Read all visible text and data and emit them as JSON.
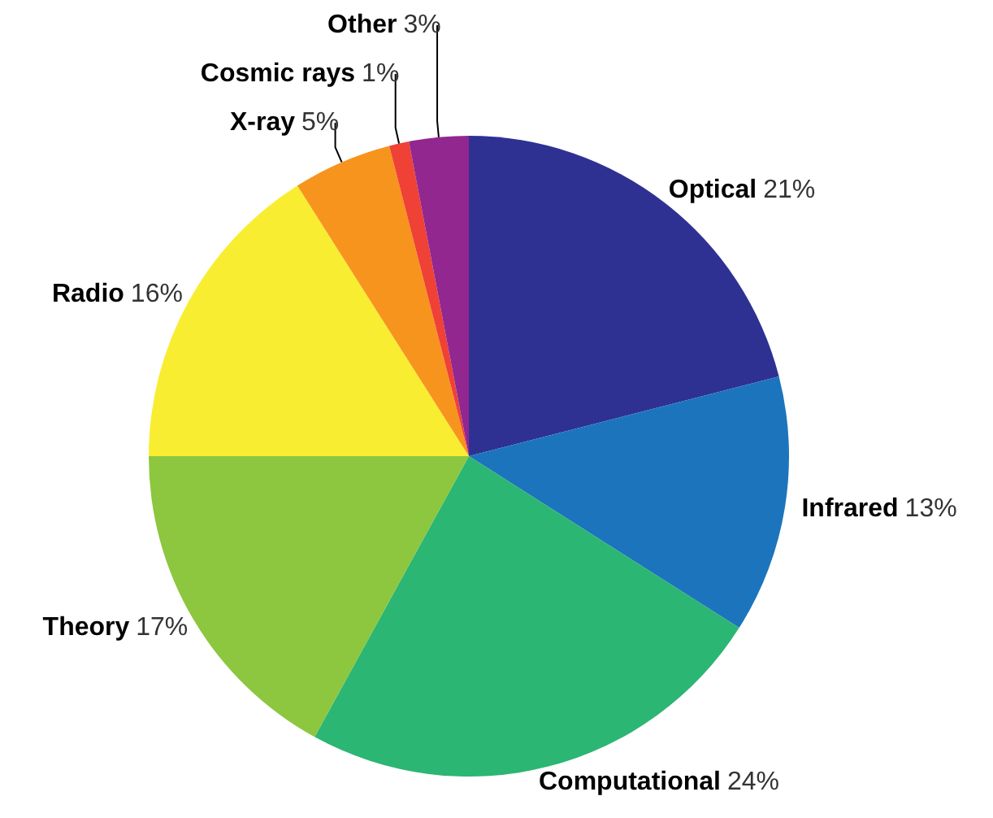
{
  "chart_data": {
    "type": "pie",
    "categories": [
      "Optical",
      "Infrared",
      "Computational",
      "Theory",
      "Radio",
      "X-ray",
      "Cosmic rays",
      "Other"
    ],
    "values": [
      21,
      13,
      24,
      17,
      16,
      5,
      1,
      3
    ],
    "value_labels": [
      "21%",
      "13%",
      "24%",
      "17%",
      "16%",
      "5%",
      "1%",
      "3%"
    ],
    "colors": [
      "#2e3192",
      "#1c75bc",
      "#2bb673",
      "#8dc63f",
      "#f9ed32",
      "#f7941d",
      "#ef4136",
      "#92278f"
    ]
  }
}
